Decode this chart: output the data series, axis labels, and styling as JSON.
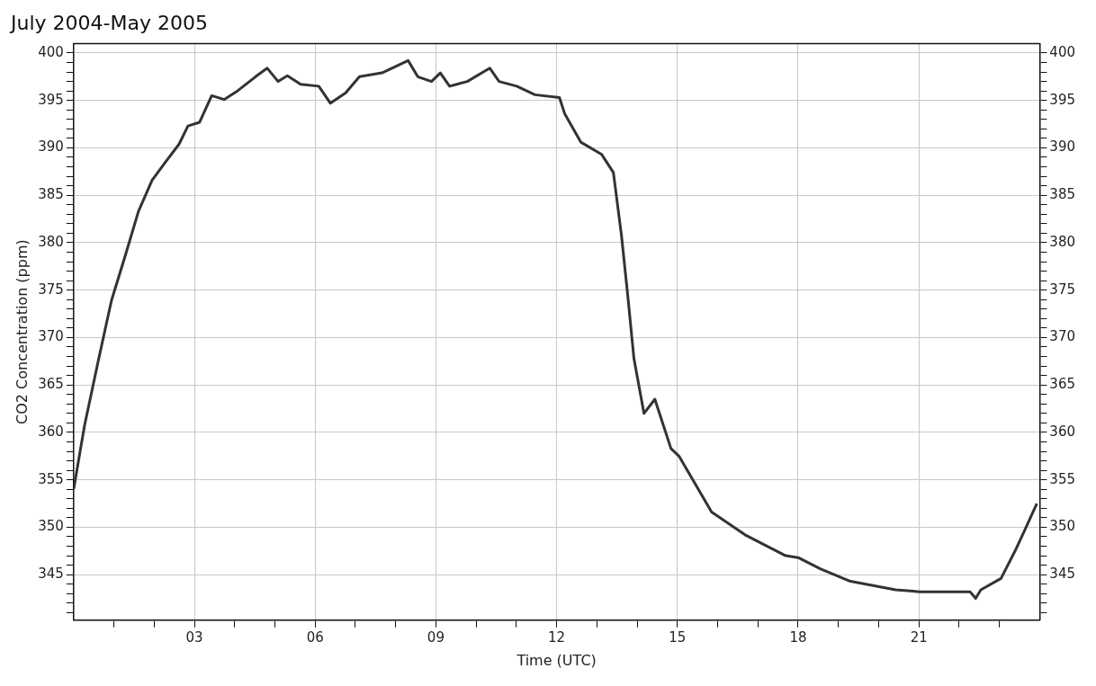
{
  "chart_data": {
    "type": "line",
    "title": "July 2004-May 2005",
    "xlabel": "Time (UTC)",
    "ylabel": "CO2 Concentration (ppm)",
    "series": [
      {
        "color": "#333333",
        "x": [
          0,
          0.27,
          0.6,
          0.94,
          1.28,
          1.61,
          1.95,
          2.28,
          2.62,
          2.84,
          3.13,
          3.43,
          3.74,
          4.07,
          4.52,
          4.81,
          5.08,
          5.31,
          5.64,
          6.09,
          6.38,
          6.76,
          7.1,
          7.66,
          8.31,
          8.55,
          8.89,
          9.11,
          9.34,
          9.78,
          10.34,
          10.57,
          11.01,
          11.46,
          12.07,
          12.2,
          12.6,
          13.12,
          13.41,
          13.61,
          13.77,
          13.92,
          14.17,
          14.44,
          14.84,
          15.04,
          15.85,
          16.68,
          17.69,
          18,
          18.56,
          19.3,
          20.42,
          21.02,
          22.27,
          22.41,
          22.54,
          23.04,
          23.39,
          23.62,
          23.93
        ],
        "values": [
          354,
          360.7,
          367.3,
          373.9,
          378.6,
          383.3,
          386.6,
          388.5,
          390.4,
          392.3,
          392.7,
          395.5,
          395.1,
          396,
          397.5,
          398.4,
          397,
          397.6,
          396.7,
          396.5,
          394.7,
          395.8,
          397.5,
          397.9,
          399.2,
          397.5,
          397,
          397.9,
          396.5,
          397,
          398.4,
          397,
          396.5,
          395.6,
          395.3,
          393.6,
          390.6,
          389.3,
          387.4,
          380.8,
          374.3,
          367.8,
          362,
          363.5,
          358.3,
          357.5,
          351.6,
          349.2,
          347,
          346.8,
          345.6,
          344.3,
          343.4,
          343.2,
          343.2,
          342.5,
          343.4,
          344.6,
          347.5,
          349.6,
          352.5
        ]
      }
    ],
    "xlim": [
      0,
      24
    ],
    "xticks": [
      {
        "value": 1,
        "label": null
      },
      {
        "value": 2,
        "label": null
      },
      {
        "value": 3,
        "label": "03"
      },
      {
        "value": 4,
        "label": null
      },
      {
        "value": 5,
        "label": null
      },
      {
        "value": 6,
        "label": "06"
      },
      {
        "value": 7,
        "label": null
      },
      {
        "value": 8,
        "label": null
      },
      {
        "value": 9,
        "label": "09"
      },
      {
        "value": 10,
        "label": null
      },
      {
        "value": 11,
        "label": null
      },
      {
        "value": 12,
        "label": "12"
      },
      {
        "value": 13,
        "label": null
      },
      {
        "value": 14,
        "label": null
      },
      {
        "value": 15,
        "label": "15"
      },
      {
        "value": 16,
        "label": null
      },
      {
        "value": 17,
        "label": null
      },
      {
        "value": 18,
        "label": "18"
      },
      {
        "value": 19,
        "label": null
      },
      {
        "value": 20,
        "label": null
      },
      {
        "value": 21,
        "label": "21"
      },
      {
        "value": 22,
        "label": null
      },
      {
        "value": 23,
        "label": null
      }
    ],
    "ylim": [
      340.2,
      401
    ],
    "yticks": [
      {
        "value": 341,
        "label": null
      },
      {
        "value": 342,
        "label": null
      },
      {
        "value": 343,
        "label": null
      },
      {
        "value": 344,
        "label": null
      },
      345,
      {
        "value": 346,
        "label": null
      },
      {
        "value": 347,
        "label": null
      },
      {
        "value": 348,
        "label": null
      },
      {
        "value": 349,
        "label": null
      },
      350,
      {
        "value": 351,
        "label": null
      },
      {
        "value": 352,
        "label": null
      },
      {
        "value": 353,
        "label": null
      },
      {
        "value": 354,
        "label": null
      },
      355,
      {
        "value": 356,
        "label": null
      },
      {
        "value": 357,
        "label": null
      },
      {
        "value": 358,
        "label": null
      },
      {
        "value": 359,
        "label": null
      },
      360,
      {
        "value": 361,
        "label": null
      },
      {
        "value": 362,
        "label": null
      },
      {
        "value": 363,
        "label": null
      },
      {
        "value": 364,
        "label": null
      },
      365,
      {
        "value": 366,
        "label": null
      },
      {
        "value": 367,
        "label": null
      },
      {
        "value": 368,
        "label": null
      },
      {
        "value": 369,
        "label": null
      },
      370,
      {
        "value": 371,
        "label": null
      },
      {
        "value": 372,
        "label": null
      },
      {
        "value": 373,
        "label": null
      },
      {
        "value": 374,
        "label": null
      },
      375,
      {
        "value": 376,
        "label": null
      },
      {
        "value": 377,
        "label": null
      },
      {
        "value": 378,
        "label": null
      },
      {
        "value": 379,
        "label": null
      },
      380,
      {
        "value": 381,
        "label": null
      },
      {
        "value": 382,
        "label": null
      },
      {
        "value": 383,
        "label": null
      },
      {
        "value": 384,
        "label": null
      },
      385,
      {
        "value": 386,
        "label": null
      },
      {
        "value": 387,
        "label": null
      },
      {
        "value": 388,
        "label": null
      },
      {
        "value": 389,
        "label": null
      },
      390,
      {
        "value": 391,
        "label": null
      },
      {
        "value": 392,
        "label": null
      },
      {
        "value": 393,
        "label": null
      },
      {
        "value": 394,
        "label": null
      },
      395,
      {
        "value": 396,
        "label": null
      },
      {
        "value": 397,
        "label": null
      },
      {
        "value": 398,
        "label": null
      },
      {
        "value": 399,
        "label": null
      },
      400
    ],
    "y2lim": [
      340.2,
      401
    ],
    "y2ticks": [
      {
        "value": 341,
        "label": null
      },
      {
        "value": 342,
        "label": null
      },
      {
        "value": 343,
        "label": null
      },
      {
        "value": 344,
        "label": null
      },
      345,
      {
        "value": 346,
        "label": null
      },
      {
        "value": 347,
        "label": null
      },
      {
        "value": 348,
        "label": null
      },
      {
        "value": 349,
        "label": null
      },
      350,
      {
        "value": 351,
        "label": null
      },
      {
        "value": 352,
        "label": null
      },
      {
        "value": 353,
        "label": null
      },
      {
        "value": 354,
        "label": null
      },
      355,
      {
        "value": 356,
        "label": null
      },
      {
        "value": 357,
        "label": null
      },
      {
        "value": 358,
        "label": null
      },
      {
        "value": 359,
        "label": null
      },
      360,
      {
        "value": 361,
        "label": null
      },
      {
        "value": 362,
        "label": null
      },
      {
        "value": 363,
        "label": null
      },
      {
        "value": 364,
        "label": null
      },
      365,
      {
        "value": 366,
        "label": null
      },
      {
        "value": 367,
        "label": null
      },
      {
        "value": 368,
        "label": null
      },
      {
        "value": 369,
        "label": null
      },
      370,
      {
        "value": 371,
        "label": null
      },
      {
        "value": 372,
        "label": null
      },
      {
        "value": 373,
        "label": null
      },
      {
        "value": 374,
        "label": null
      },
      375,
      {
        "value": 376,
        "label": null
      },
      {
        "value": 377,
        "label": null
      },
      {
        "value": 378,
        "label": null
      },
      {
        "value": 379,
        "label": null
      },
      380,
      {
        "value": 381,
        "label": null
      },
      {
        "value": 382,
        "label": null
      },
      {
        "value": 383,
        "label": null
      },
      {
        "value": 384,
        "label": null
      },
      385,
      {
        "value": 386,
        "label": null
      },
      {
        "value": 387,
        "label": null
      },
      {
        "value": 388,
        "label": null
      },
      {
        "value": 389,
        "label": null
      },
      390,
      {
        "value": 391,
        "label": null
      },
      {
        "value": 392,
        "label": null
      },
      {
        "value": 393,
        "label": null
      },
      {
        "value": 394,
        "label": null
      },
      395,
      {
        "value": 396,
        "label": null
      },
      {
        "value": 397,
        "label": null
      },
      {
        "value": 398,
        "label": null
      },
      {
        "value": 399,
        "label": null
      },
      400
    ],
    "grid": true
  }
}
